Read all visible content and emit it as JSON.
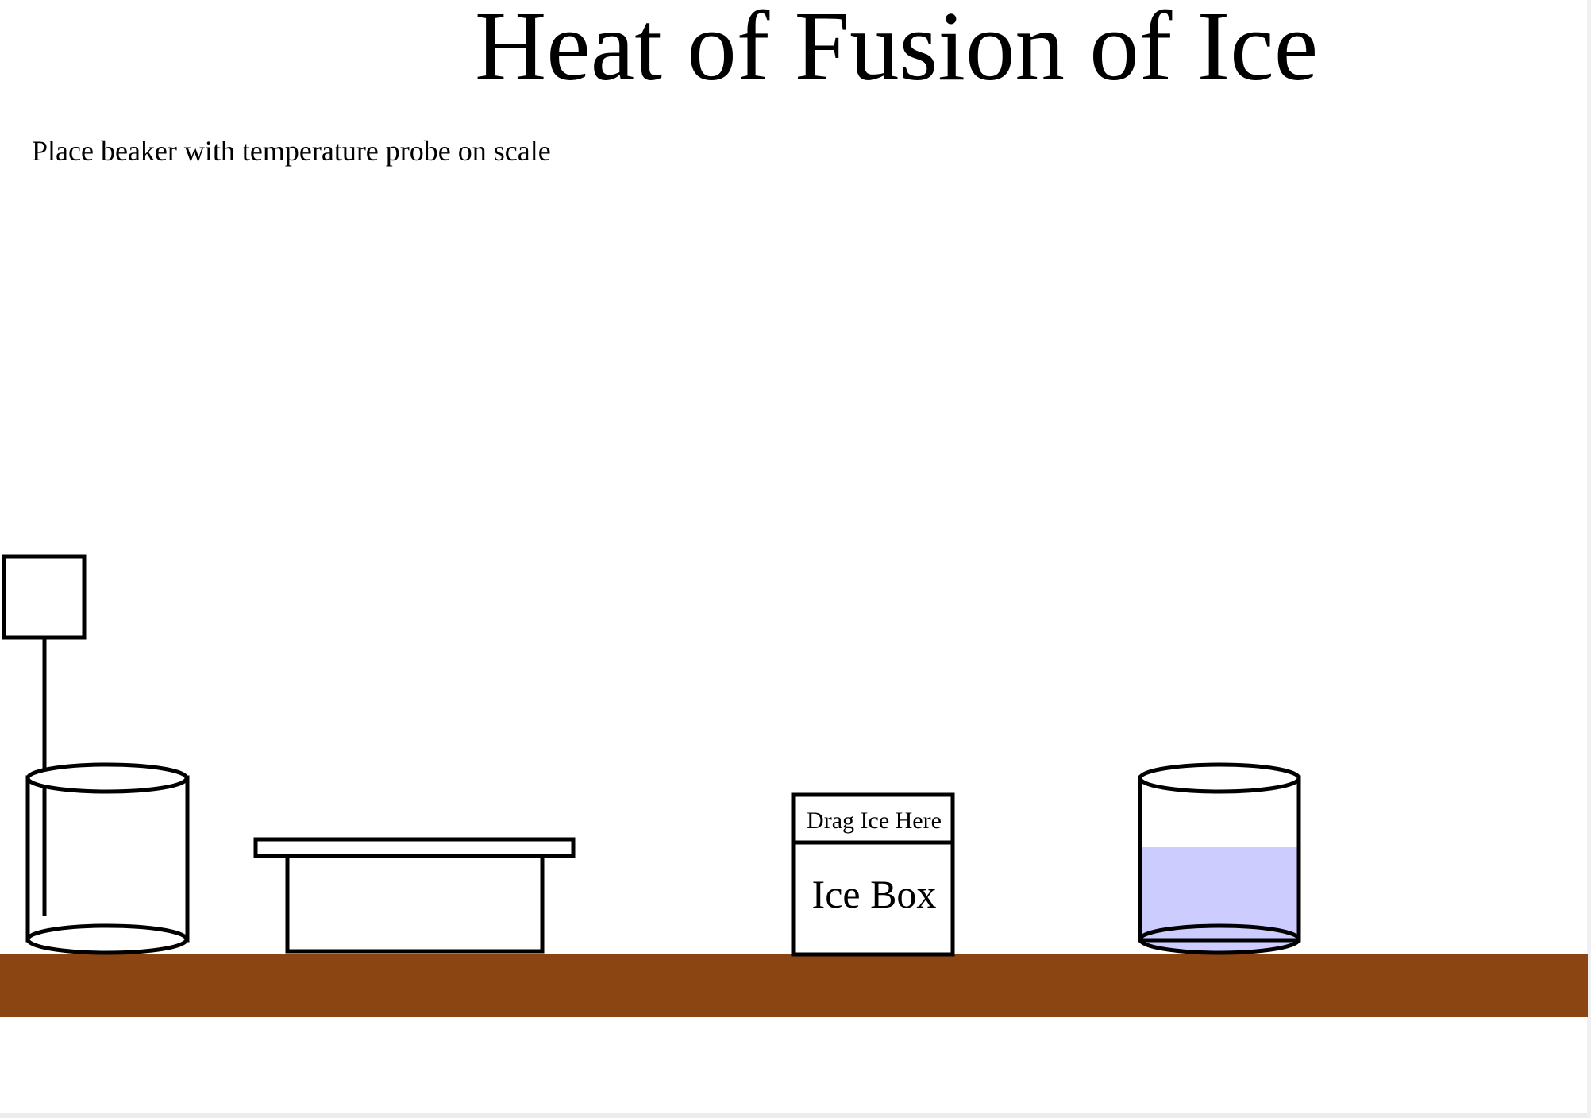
{
  "title": "Heat of Fusion of Ice",
  "instruction": "Place beaker with temperature probe on scale",
  "ice_box": {
    "drop_label": "Drag Ice Here",
    "label": "Ice Box"
  },
  "water_beaker": {
    "fill_fraction": 0.57,
    "water_color": "#ccccff"
  },
  "colors": {
    "table": "#8b4513",
    "outline": "#000000",
    "background": "#ffffff"
  }
}
